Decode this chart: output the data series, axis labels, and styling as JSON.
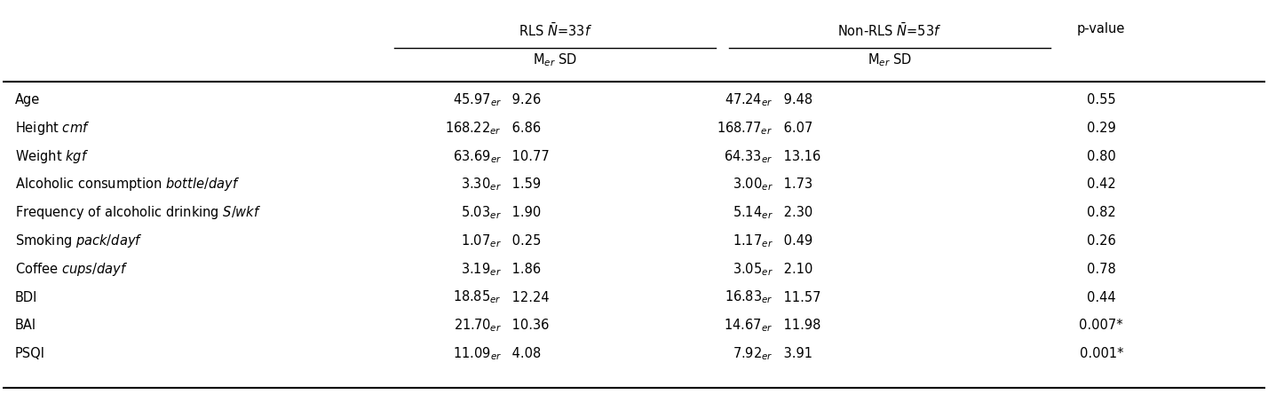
{
  "col_headers": [
    "",
    "RLS $N\\bar{=}33f$",
    "",
    "Non-RLS $N\\bar{=}53f$",
    "",
    "p-value"
  ],
  "sub_headers": [
    "",
    "Mₑᵣ SD",
    "",
    "Mₑᵣ SD",
    "",
    ""
  ],
  "rls_header": "RLS $N\\bar{=}33f$",
  "nonrls_header": "Non-RLS $N\\bar{=}53f$",
  "rows": [
    [
      "Age",
      "45.97",
      "9.26",
      "47.24",
      "9.48",
      "0.55"
    ],
    [
      "Height $cm f$",
      "168.22",
      "6.86",
      "168.77",
      "6.07",
      "0.29"
    ],
    [
      "Weight $kg f$",
      "63.69",
      "10.77",
      "64.33",
      "13.16",
      "0.80"
    ],
    [
      "Alcoholic consumption $bottle/day f$",
      "3.30",
      "1.59",
      "3.00",
      "1.73",
      "0.42"
    ],
    [
      "Frequency of alcoholic drinking $S/wk f$",
      "5.03",
      "1.90",
      "5.14",
      "2.30",
      "0.82"
    ],
    [
      "Smoking $pack/day f$",
      "1.07",
      "0.25",
      "1.17",
      "0.49",
      "0.26"
    ],
    [
      "Coffee $cups/day f$",
      "3.19",
      "1.86",
      "3.05",
      "2.10",
      "0.78"
    ],
    [
      "BDI",
      "18.85",
      "12.24",
      "16.83",
      "11.57",
      "0.44"
    ],
    [
      "BAI",
      "21.70",
      "10.36",
      "14.67",
      "11.98",
      "0.007*"
    ],
    [
      "PSQI",
      "11.09",
      "4.08",
      "7.92",
      "3.91",
      "0.001*"
    ]
  ],
  "bg_color": "white",
  "text_color": "black",
  "font_size": 10.5,
  "header_font_size": 10.5
}
